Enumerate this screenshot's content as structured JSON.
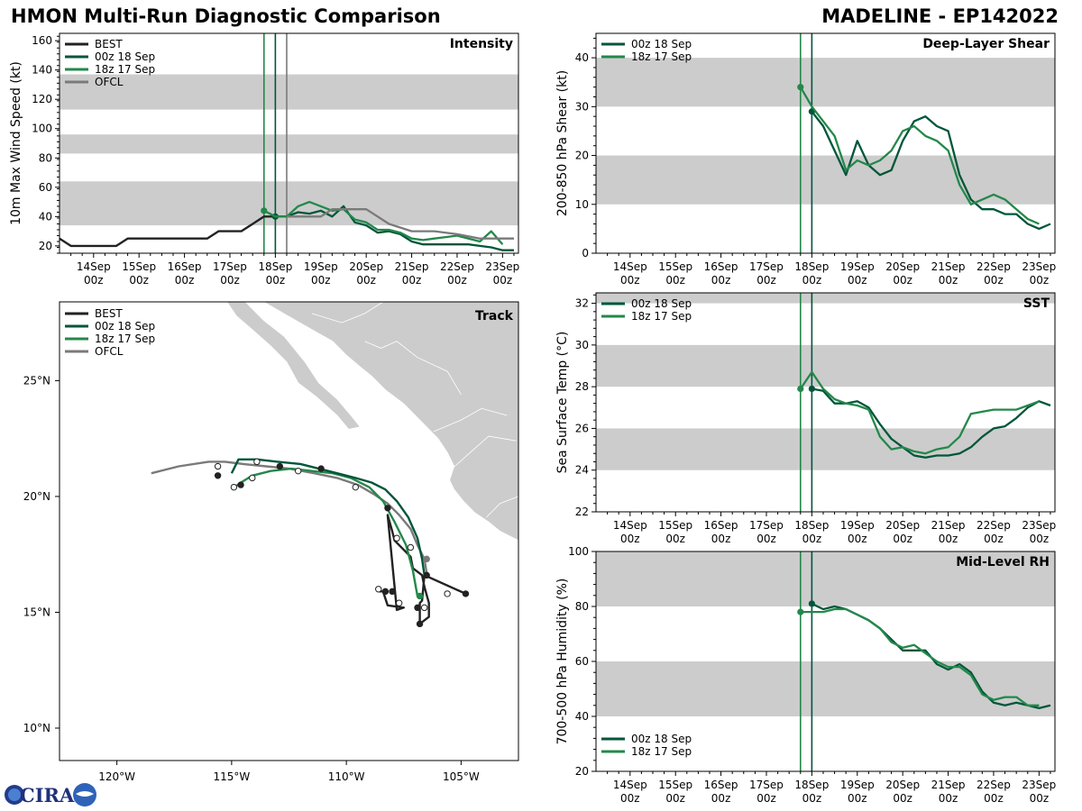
{
  "header": {
    "title_left": "HMON Multi-Run Diagnostic Comparison",
    "title_right": "MADELINE - EP142022"
  },
  "logo_text": "CIRA",
  "colors": {
    "BEST": "#222222",
    "00z 18 Sep": "#00563a",
    "18z 17 Sep": "#23884a",
    "OFCL": "#7a7a7a",
    "band": "#cccccc",
    "land": "#cccccc"
  },
  "time_axis": {
    "ticks": [
      1,
      2,
      3,
      4,
      5,
      6,
      7,
      8,
      9,
      10
    ],
    "labels": [
      [
        "14Sep",
        "00z"
      ],
      [
        "15Sep",
        "00z"
      ],
      [
        "16Sep",
        "00z"
      ],
      [
        "17Sep",
        "00z"
      ],
      [
        "18Sep",
        "00z"
      ],
      [
        "19Sep",
        "00z"
      ],
      [
        "20Sep",
        "00z"
      ],
      [
        "21Sep",
        "00z"
      ],
      [
        "22Sep",
        "00z"
      ],
      [
        "23Sep",
        "00z"
      ]
    ],
    "xlim": [
      0.25,
      10.35
    ]
  },
  "chart_data": [
    {
      "id": "intensity",
      "type": "line",
      "title": "Intensity",
      "ylabel": "10m Max Wind Speed (kt)",
      "ylim": [
        15,
        165
      ],
      "yticks": [
        20,
        40,
        60,
        80,
        100,
        120,
        140,
        160
      ],
      "bands": [
        [
          34,
          64
        ],
        [
          83,
          96
        ],
        [
          113,
          137
        ]
      ],
      "vlines": [
        {
          "x": 4.75,
          "series": "18z 17 Sep"
        },
        {
          "x": 5.0,
          "series": "00z 18 Sep"
        },
        {
          "x": 5.25,
          "series": "OFCL"
        }
      ],
      "legend": [
        "BEST",
        "00z 18 Sep",
        "18z 17 Sep",
        "OFCL"
      ],
      "series": [
        {
          "name": "BEST",
          "x": [
            0.25,
            0.5,
            0.75,
            1,
            1.25,
            1.5,
            1.75,
            2,
            2.25,
            2.5,
            2.75,
            3,
            3.25,
            3.5,
            3.75,
            4,
            4.25,
            4.5,
            4.75,
            5.0,
            5.25
          ],
          "values": [
            25,
            20,
            20,
            20,
            20,
            20,
            25,
            25,
            25,
            25,
            25,
            25,
            25,
            25,
            30,
            30,
            30,
            35,
            40,
            40,
            40
          ]
        },
        {
          "name": "00z 18 Sep",
          "x": [
            5.0,
            5.25,
            5.5,
            5.75,
            6.0,
            6.25,
            6.5,
            6.75,
            7.0,
            7.25,
            7.5,
            7.75,
            8.0,
            8.25,
            8.5,
            8.75,
            9.0,
            9.25,
            9.5,
            9.75,
            10.0,
            10.25
          ],
          "values": [
            40,
            40,
            43,
            42,
            44,
            40,
            47,
            36,
            34,
            29,
            30,
            28,
            23,
            21,
            21,
            21,
            21,
            21,
            20,
            19,
            17,
            17
          ]
        },
        {
          "name": "18z 17 Sep",
          "x": [
            4.75,
            5.0,
            5.25,
            5.5,
            5.75,
            6.0,
            6.25,
            6.5,
            6.75,
            7.0,
            7.25,
            7.5,
            7.75,
            8.0,
            8.25,
            8.5,
            8.75,
            9.0,
            9.25,
            9.5,
            9.75,
            10.0
          ],
          "values": [
            44,
            40,
            40,
            47,
            50,
            47,
            44,
            45,
            38,
            36,
            31,
            31,
            29,
            25,
            24,
            25,
            26,
            27,
            25,
            23,
            30,
            21
          ]
        },
        {
          "name": "OFCL",
          "x": [
            5.25,
            5.5,
            6.0,
            6.25,
            6.5,
            7.0,
            7.25,
            7.5,
            8.0,
            8.5,
            9.0,
            9.5,
            10.25
          ],
          "values": [
            40,
            40,
            40,
            45,
            45,
            45,
            40,
            35,
            30,
            30,
            28,
            25,
            25
          ]
        }
      ]
    },
    {
      "id": "track",
      "type": "scatter",
      "title": "Track",
      "lon_range": [
        -122.5,
        -102.5
      ],
      "lat_range": [
        8.6,
        28.4
      ],
      "xticks": [
        -120,
        -115,
        -110,
        -105
      ],
      "xtick_labels": [
        "120°W",
        "115°W",
        "110°W",
        "105°W"
      ],
      "yticks": [
        10,
        15,
        20,
        25
      ],
      "ytick_labels": [
        "10°N",
        "15°N",
        "20°N",
        "25°N"
      ],
      "legend": [
        "BEST",
        "00z 18 Sep",
        "18z 17 Sep",
        "OFCL"
      ],
      "series": [
        {
          "name": "BEST",
          "x": [
            -104.8,
            -106.6,
            -106.7,
            -106.8,
            -106.8,
            -106.4,
            -106.4,
            -106.6,
            -106.7,
            -107.1,
            -107.2,
            -107.9,
            -108.0,
            -108.2,
            -107.8,
            -107.5,
            -108.2,
            -108.4,
            -108.6
          ],
          "y": [
            15.8,
            16.6,
            15.5,
            15.4,
            14.5,
            14.8,
            15.4,
            16.1,
            16.6,
            16.9,
            17.4,
            18.1,
            18.5,
            19.2,
            15.1,
            15.2,
            15.3,
            15.9,
            15.9
          ],
          "marker_fill": [
            "k",
            "k",
            "w",
            "k",
            "k",
            "k",
            "k",
            "k",
            "k",
            "k",
            "k",
            "k",
            "k",
            "k",
            "k",
            "k",
            "w",
            "k",
            "w"
          ]
        },
        {
          "name": "00z 18 Sep",
          "x": [
            -106.6,
            -106.7,
            -106.9,
            -107.3,
            -107.8,
            -108.3,
            -108.9,
            -109.6,
            -110.4,
            -111.2,
            -112.0,
            -113.0,
            -113.9,
            -114.7,
            -115.0
          ],
          "y": [
            16.6,
            17.3,
            18.2,
            19.1,
            19.8,
            20.3,
            20.6,
            20.8,
            21.0,
            21.2,
            21.4,
            21.5,
            21.6,
            21.6,
            21.0
          ],
          "marker_fill": [
            "k",
            "k",
            "w",
            "k",
            "w",
            "k",
            "w",
            "k",
            "w",
            "k",
            "w",
            "k",
            "w",
            "k",
            "w"
          ]
        },
        {
          "name": "18z 17 Sep",
          "x": [
            -106.9,
            -107.1,
            -107.4,
            -107.9,
            -108.4,
            -109.0,
            -109.8,
            -110.6,
            -111.5,
            -112.4,
            -113.3,
            -114.1,
            -114.6,
            -115.0
          ],
          "y": [
            15.7,
            16.8,
            17.9,
            18.9,
            19.8,
            20.4,
            20.8,
            21.0,
            21.1,
            21.2,
            21.1,
            20.9,
            20.6,
            20.3
          ],
          "marker_fill": [
            "g",
            "w",
            "k",
            "w",
            "k",
            "w",
            "k",
            "w",
            "k",
            "w",
            "k",
            "w",
            "k",
            "w"
          ]
        },
        {
          "name": "OFCL",
          "x": [
            -106.5,
            -106.6,
            -106.9,
            -107.2,
            -107.7,
            -108.2,
            -108.8,
            -109.5,
            -110.4,
            -111.4,
            -112.5,
            -113.5,
            -114.5,
            -115.3,
            -116.0,
            -117.3,
            -118.5
          ],
          "y": [
            16.7,
            17.3,
            17.9,
            18.6,
            19.2,
            19.7,
            20.1,
            20.5,
            20.8,
            21.0,
            21.2,
            21.3,
            21.4,
            21.5,
            21.5,
            21.3,
            21.0
          ],
          "marker_fill": [
            "k",
            "g",
            "w",
            "k",
            "w",
            "k",
            "w",
            "k",
            "w",
            "k",
            "w",
            "k",
            "w",
            "k",
            "w",
            "k",
            "w"
          ]
        }
      ],
      "extra_points": [
        {
          "x": -115.6,
          "y": 21.3,
          "fill": "w"
        },
        {
          "x": -115.6,
          "y": 20.9,
          "fill": "k"
        },
        {
          "x": -114.9,
          "y": 20.4,
          "fill": "w"
        },
        {
          "x": -114.6,
          "y": 20.5,
          "fill": "k"
        },
        {
          "x": -114.1,
          "y": 20.8,
          "fill": "w"
        },
        {
          "x": -113.9,
          "y": 21.5,
          "fill": "w"
        },
        {
          "x": -112.9,
          "y": 21.3,
          "fill": "k"
        },
        {
          "x": -112.1,
          "y": 21.1,
          "fill": "w"
        },
        {
          "x": -111.1,
          "y": 21.2,
          "fill": "k"
        },
        {
          "x": -109.6,
          "y": 20.4,
          "fill": "w"
        },
        {
          "x": -108.2,
          "y": 19.5,
          "fill": "k"
        },
        {
          "x": -107.8,
          "y": 18.2,
          "fill": "w"
        },
        {
          "x": -107.2,
          "y": 17.8,
          "fill": "w"
        },
        {
          "x": -106.5,
          "y": 17.3,
          "fill": "g2"
        },
        {
          "x": -106.5,
          "y": 16.6,
          "fill": "k"
        },
        {
          "x": -105.6,
          "y": 15.8,
          "fill": "w"
        },
        {
          "x": -104.8,
          "y": 15.8,
          "fill": "k"
        },
        {
          "x": -106.6,
          "y": 15.2,
          "fill": "w"
        },
        {
          "x": -106.9,
          "y": 15.2,
          "fill": "k"
        },
        {
          "x": -106.8,
          "y": 14.5,
          "fill": "k"
        },
        {
          "x": -107.7,
          "y": 15.4,
          "fill": "w"
        },
        {
          "x": -108.0,
          "y": 15.9,
          "fill": "k"
        },
        {
          "x": -108.3,
          "y": 15.9,
          "fill": "k"
        },
        {
          "x": -108.6,
          "y": 16.0,
          "fill": "w"
        },
        {
          "x": -106.8,
          "y": 15.7,
          "fill": "g"
        }
      ]
    },
    {
      "id": "shear",
      "type": "line",
      "title": "Deep-Layer Shear",
      "ylabel": "200-850 hPa Shear (kt)",
      "ylim": [
        0,
        45
      ],
      "yticks": [
        0,
        10,
        20,
        30,
        40
      ],
      "bands": [
        [
          10,
          20
        ],
        [
          30,
          40
        ]
      ],
      "vlines": [
        {
          "x": 4.75,
          "series": "18z 17 Sep"
        },
        {
          "x": 5.0,
          "series": "00z 18 Sep"
        }
      ],
      "legend": [
        "00z 18 Sep",
        "18z 17 Sep"
      ],
      "series": [
        {
          "name": "00z 18 Sep",
          "x": [
            5.0,
            5.25,
            5.5,
            5.75,
            6.0,
            6.25,
            6.5,
            6.75,
            7.0,
            7.25,
            7.5,
            7.75,
            8.0,
            8.25,
            8.5,
            8.75,
            9.0,
            9.25,
            9.5,
            9.75,
            10.0,
            10.25
          ],
          "values": [
            29,
            26,
            21,
            16,
            23,
            18,
            16,
            17,
            23,
            27,
            28,
            26,
            25,
            16,
            11,
            9,
            9,
            8,
            8,
            6,
            5,
            6
          ]
        },
        {
          "name": "18z 17 Sep",
          "x": [
            4.75,
            5.0,
            5.25,
            5.5,
            5.75,
            6.0,
            6.25,
            6.5,
            6.75,
            7.0,
            7.25,
            7.5,
            7.75,
            8.0,
            8.25,
            8.5,
            8.75,
            9.0,
            9.25,
            9.5,
            9.75,
            10.0
          ],
          "values": [
            34,
            30,
            27,
            24,
            17,
            19,
            18,
            19,
            21,
            25,
            26,
            24,
            23,
            21,
            14,
            10,
            11,
            12,
            11,
            9,
            7,
            6
          ]
        }
      ]
    },
    {
      "id": "sst",
      "type": "line",
      "title": "SST",
      "ylabel": "Sea Surface Temp (°C)",
      "ylim": [
        22,
        32.5
      ],
      "yticks": [
        22,
        24,
        26,
        28,
        30,
        32
      ],
      "bands": [
        [
          24,
          26
        ],
        [
          28,
          30
        ],
        [
          32,
          32.5
        ]
      ],
      "vlines": [
        {
          "x": 4.75,
          "series": "18z 17 Sep"
        },
        {
          "x": 5.0,
          "series": "00z 18 Sep"
        }
      ],
      "legend": [
        "00z 18 Sep",
        "18z 17 Sep"
      ],
      "series": [
        {
          "name": "00z 18 Sep",
          "x": [
            5.0,
            5.25,
            5.5,
            5.75,
            6.0,
            6.25,
            6.5,
            6.75,
            7.0,
            7.25,
            7.5,
            7.75,
            8.0,
            8.25,
            8.5,
            8.75,
            9.0,
            9.25,
            9.5,
            9.75,
            10.0,
            10.25
          ],
          "values": [
            27.9,
            27.8,
            27.2,
            27.2,
            27.3,
            27.0,
            26.2,
            25.5,
            25.1,
            24.7,
            24.6,
            24.7,
            24.7,
            24.8,
            25.1,
            25.6,
            26.0,
            26.1,
            26.5,
            27.0,
            27.3,
            27.1
          ]
        },
        {
          "name": "18z 17 Sep",
          "x": [
            4.75,
            5.0,
            5.25,
            5.5,
            5.75,
            6.0,
            6.25,
            6.5,
            6.75,
            7.0,
            7.25,
            7.5,
            7.75,
            8.0,
            8.25,
            8.5,
            8.75,
            9.0,
            9.25,
            9.5,
            9.75,
            10.0
          ],
          "values": [
            27.9,
            28.7,
            27.9,
            27.4,
            27.2,
            27.1,
            26.9,
            25.6,
            25.0,
            25.1,
            24.9,
            24.8,
            25.0,
            25.1,
            25.6,
            26.7,
            26.8,
            26.9,
            26.9,
            26.9,
            27.1,
            27.3
          ]
        }
      ]
    },
    {
      "id": "rh",
      "type": "line",
      "title": "Mid-Level RH",
      "ylabel": "700-500 hPa Humidity (%)",
      "ylim": [
        20,
        100
      ],
      "yticks": [
        20,
        40,
        60,
        80,
        100
      ],
      "bands": [
        [
          40,
          60
        ],
        [
          80,
          100
        ]
      ],
      "vlines": [
        {
          "x": 4.75,
          "series": "18z 17 Sep"
        },
        {
          "x": 5.0,
          "series": "00z 18 Sep"
        }
      ],
      "legend": [
        "00z 18 Sep",
        "18z 17 Sep"
      ],
      "legend_position": "lower-left",
      "series": [
        {
          "name": "00z 18 Sep",
          "x": [
            5.0,
            5.25,
            5.5,
            5.75,
            6.0,
            6.25,
            6.5,
            6.75,
            7.0,
            7.25,
            7.5,
            7.75,
            8.0,
            8.25,
            8.5,
            8.75,
            9.0,
            9.25,
            9.5,
            9.75,
            10.0,
            10.25
          ],
          "values": [
            81,
            79,
            80,
            79,
            77,
            75,
            72,
            68,
            64,
            64,
            64,
            59,
            57,
            59,
            56,
            49,
            45,
            44,
            45,
            44,
            43,
            44
          ]
        },
        {
          "name": "18z 17 Sep",
          "x": [
            4.75,
            5.0,
            5.25,
            5.5,
            5.75,
            6.0,
            6.25,
            6.5,
            6.75,
            7.0,
            7.25,
            7.5,
            7.75,
            8.0,
            8.25,
            8.5,
            8.75,
            9.0,
            9.25,
            9.5,
            9.75,
            10.0
          ],
          "values": [
            78,
            78,
            78,
            79,
            79,
            77,
            75,
            72,
            67,
            65,
            66,
            63,
            60,
            58,
            58,
            55,
            48,
            46,
            47,
            47,
            44,
            44
          ]
        }
      ]
    }
  ]
}
